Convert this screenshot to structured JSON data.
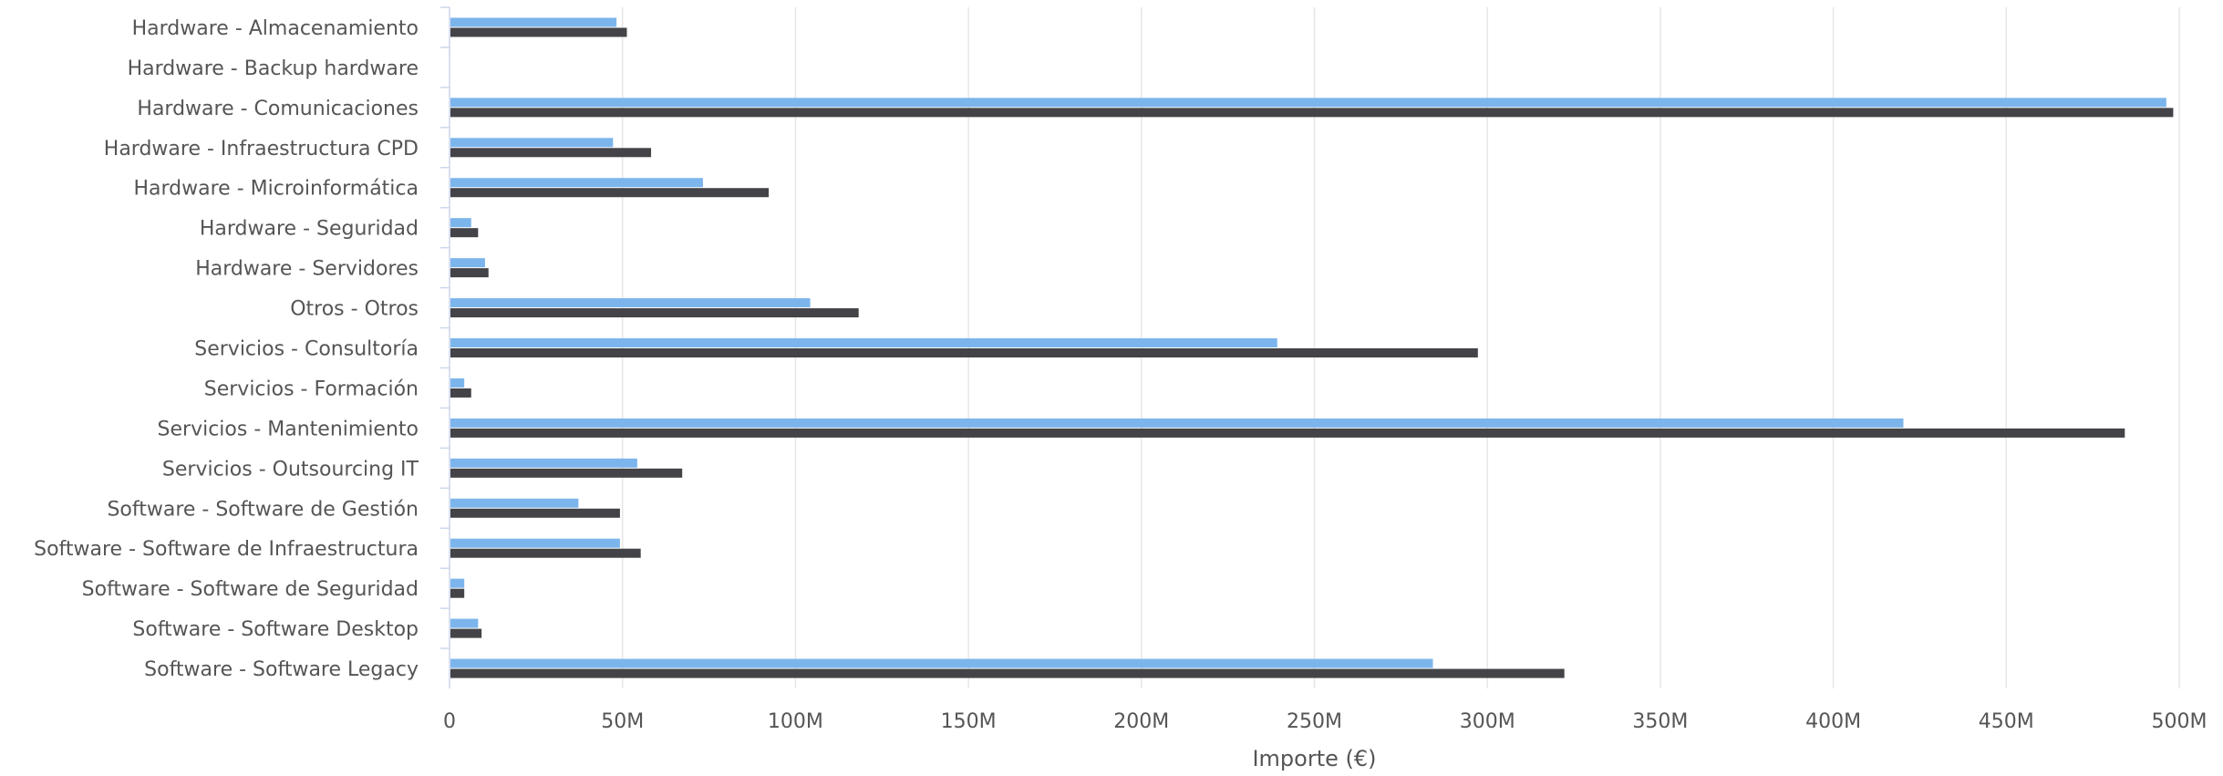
{
  "chart_data": {
    "type": "bar",
    "orientation": "horizontal",
    "categories": [
      "Hardware - Almacenamiento",
      "Hardware - Backup hardware",
      "Hardware - Comunicaciones",
      "Hardware - Infraestructura CPD",
      "Hardware - Microinformática",
      "Hardware - Seguridad",
      "Hardware - Servidores",
      "Otros - Otros",
      "Servicios - Consultoría",
      "Servicios - Formación",
      "Servicios - Mantenimiento",
      "Servicios - Outsourcing IT",
      "Software - Software de Gestión",
      "Software - Software de Infraestructura",
      "Software - Software de Seguridad",
      "Software - Software Desktop",
      "Software - Software Legacy"
    ],
    "series": [
      {
        "color": "#7cb5ec",
        "values": [
          48,
          0,
          496,
          47,
          73,
          6,
          10,
          104,
          239,
          4,
          420,
          54,
          37,
          49,
          4,
          8,
          284
        ]
      },
      {
        "color": "#434348",
        "values": [
          51,
          0,
          498,
          58,
          92,
          8,
          11,
          118,
          297,
          6,
          484,
          67,
          49,
          55,
          4,
          9,
          322
        ]
      }
    ],
    "value_unit": "M",
    "xlim": [
      0,
      500
    ],
    "x_ticks": [
      "0",
      "50M",
      "100M",
      "150M",
      "200M",
      "250M",
      "300M",
      "350M",
      "400M",
      "450M",
      "500M"
    ],
    "xlabel": "Importe (€)",
    "ylabel": "",
    "title": "",
    "grid": true
  }
}
